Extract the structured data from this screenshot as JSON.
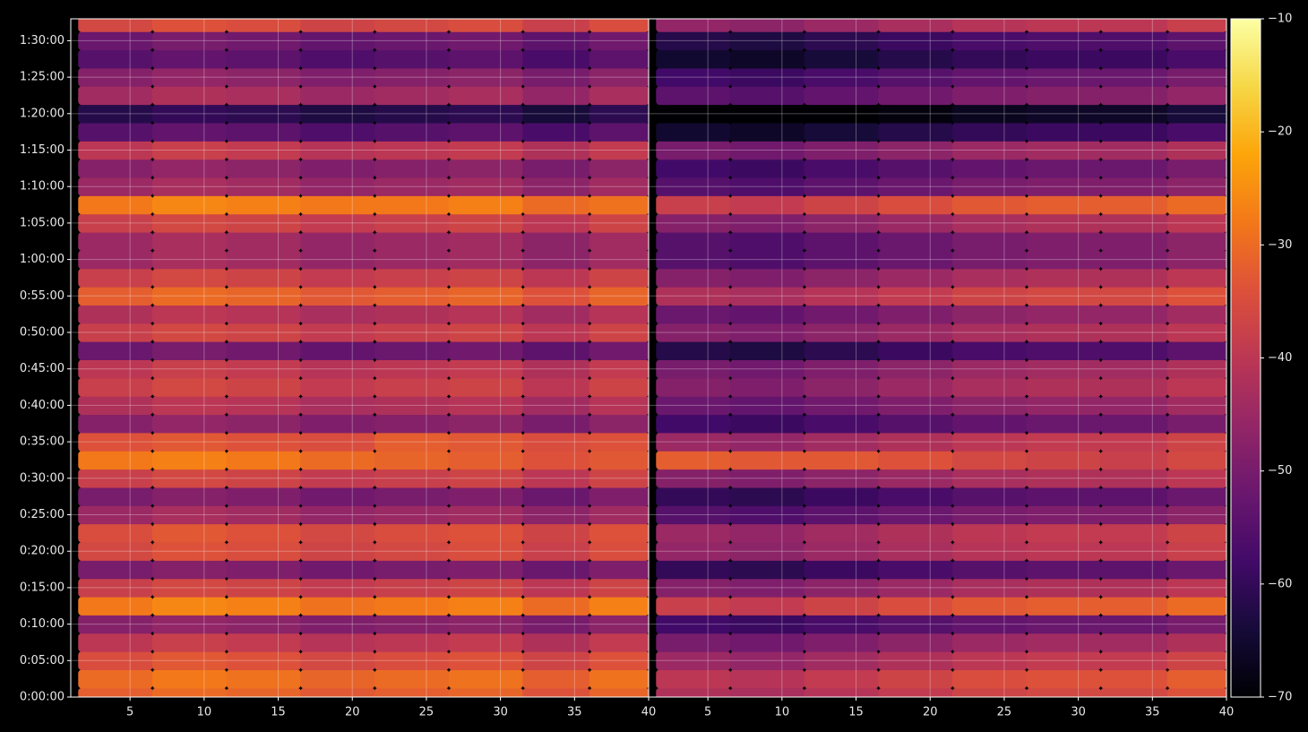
{
  "chart_data": [
    {
      "type": "heatmap",
      "x": [
        4,
        9,
        14,
        19,
        24,
        29,
        34,
        38
      ],
      "y": [
        0,
        150,
        300,
        450,
        600,
        750,
        900,
        1050,
        1200,
        1350,
        1500,
        1650,
        1800,
        1950,
        2100,
        2250,
        2400,
        2550,
        2700,
        2850,
        3000,
        3150,
        3300,
        3450,
        3600,
        3750,
        3900,
        4050,
        4200,
        4350,
        4500,
        4650,
        4800,
        4950,
        5100,
        5250,
        5400,
        5550
      ],
      "values": [
        [
          -32,
          -30,
          -31,
          -33,
          -32,
          -31,
          -34,
          -31
        ],
        [
          -30,
          -28,
          -29,
          -31,
          -30,
          -29,
          -32,
          -29
        ],
        [
          -35,
          -33,
          -34,
          -36,
          -35,
          -34,
          -37,
          -34
        ],
        [
          -40,
          -38,
          -39,
          -41,
          -40,
          -39,
          -42,
          -39
        ],
        [
          -48,
          -46,
          -47,
          -49,
          -48,
          -47,
          -50,
          -47
        ],
        [
          -28,
          -26,
          -27,
          -29,
          -28,
          -27,
          -30,
          -27
        ],
        [
          -38,
          -36,
          -37,
          -39,
          -38,
          -37,
          -40,
          -37
        ],
        [
          -50,
          -48,
          -49,
          -51,
          -50,
          -49,
          -52,
          -49
        ],
        [
          -36,
          -34,
          -35,
          -37,
          -36,
          -35,
          -38,
          -35
        ],
        [
          -35,
          -33,
          -34,
          -36,
          -35,
          -34,
          -37,
          -34
        ],
        [
          -45,
          -43,
          -44,
          -46,
          -45,
          -44,
          -47,
          -44
        ],
        [
          -50,
          -48,
          -49,
          -51,
          -50,
          -49,
          -52,
          -49
        ],
        [
          -38,
          -36,
          -37,
          -39,
          -38,
          -37,
          -40,
          -37
        ],
        [
          -28,
          -27,
          -28,
          -30,
          -31,
          -32,
          -34,
          -33
        ],
        [
          -34,
          -33,
          -34,
          -35,
          -32,
          -33,
          -35,
          -34
        ],
        [
          -48,
          -46,
          -47,
          -49,
          -48,
          -47,
          -50,
          -47
        ],
        [
          -42,
          -40,
          -41,
          -43,
          -42,
          -41,
          -44,
          -41
        ],
        [
          -38,
          -36,
          -37,
          -39,
          -38,
          -37,
          -40,
          -37
        ],
        [
          -40,
          -38,
          -39,
          -41,
          -40,
          -39,
          -42,
          -39
        ],
        [
          -52,
          -50,
          -51,
          -53,
          -52,
          -51,
          -54,
          -51
        ],
        [
          -38,
          -36,
          -37,
          -39,
          -38,
          -37,
          -40,
          -37
        ],
        [
          -42,
          -40,
          -41,
          -43,
          -42,
          -41,
          -44,
          -41
        ],
        [
          -32,
          -30,
          -31,
          -33,
          -32,
          -31,
          -34,
          -31
        ],
        [
          -38,
          -36,
          -37,
          -39,
          -38,
          -37,
          -40,
          -37
        ],
        [
          -45,
          -43,
          -44,
          -46,
          -45,
          -44,
          -47,
          -44
        ],
        [
          -45,
          -43,
          -44,
          -46,
          -45,
          -44,
          -47,
          -44
        ],
        [
          -38,
          -36,
          -37,
          -39,
          -38,
          -37,
          -40,
          -37
        ],
        [
          -28,
          -26,
          -27,
          -28,
          -28,
          -27,
          -30,
          -29
        ],
        [
          -45,
          -43,
          -44,
          -46,
          -45,
          -44,
          -47,
          -44
        ],
        [
          -48,
          -46,
          -47,
          -49,
          -48,
          -47,
          -50,
          -47
        ],
        [
          -40,
          -38,
          -39,
          -41,
          -40,
          -39,
          -42,
          -39
        ],
        [
          -55,
          -53,
          -54,
          -56,
          -55,
          -54,
          -57,
          -54
        ],
        [
          -62,
          -60,
          -61,
          -63,
          -62,
          -61,
          -64,
          -61
        ],
        [
          -44,
          -42,
          -43,
          -45,
          -44,
          -43,
          -46,
          -43
        ],
        [
          -48,
          -46,
          -47,
          -49,
          -48,
          -47,
          -50,
          -47
        ],
        [
          -55,
          -53,
          -54,
          -56,
          -55,
          -54,
          -57,
          -54
        ],
        [
          -52,
          -50,
          -51,
          -53,
          -52,
          -51,
          -54,
          -51
        ],
        [
          -36,
          -34,
          -35,
          -37,
          -36,
          -35,
          -38,
          -35
        ]
      ],
      "xlim": [
        1,
        40
      ],
      "ylim": [
        0,
        5580
      ],
      "xticks": [
        5,
        10,
        15,
        20,
        25,
        30,
        35,
        40
      ],
      "yticks": [
        {
          "value": 0,
          "label": "0:00:00"
        },
        {
          "value": 300,
          "label": "0:05:00"
        },
        {
          "value": 600,
          "label": "0:10:00"
        },
        {
          "value": 900,
          "label": "0:15:00"
        },
        {
          "value": 1200,
          "label": "0:20:00"
        },
        {
          "value": 1500,
          "label": "0:25:00"
        },
        {
          "value": 1800,
          "label": "0:30:00"
        },
        {
          "value": 2100,
          "label": "0:35:00"
        },
        {
          "value": 2400,
          "label": "0:40:00"
        },
        {
          "value": 2700,
          "label": "0:45:00"
        },
        {
          "value": 3000,
          "label": "0:50:00"
        },
        {
          "value": 3300,
          "label": "0:55:00"
        },
        {
          "value": 3600,
          "label": "1:00:00"
        },
        {
          "value": 3900,
          "label": "1:05:00"
        },
        {
          "value": 4200,
          "label": "1:10:00"
        },
        {
          "value": 4500,
          "label": "1:15:00"
        },
        {
          "value": 4800,
          "label": "1:20:00"
        },
        {
          "value": 5100,
          "label": "1:25:00"
        },
        {
          "value": 5400,
          "label": "1:30:00"
        }
      ],
      "grid": true,
      "colormap": "inferno"
    },
    {
      "type": "heatmap",
      "x": [
        4,
        9,
        14,
        19,
        24,
        29,
        34,
        38
      ],
      "y": [
        0,
        150,
        300,
        450,
        600,
        750,
        900,
        1050,
        1200,
        1350,
        1500,
        1650,
        1800,
        1950,
        2100,
        2250,
        2400,
        2550,
        2700,
        2850,
        3000,
        3150,
        3300,
        3450,
        3600,
        3750,
        3900,
        4050,
        4200,
        4350,
        4500,
        4650,
        4800,
        4950,
        5100,
        5250,
        5400,
        5550
      ],
      "values": [
        [
          -42,
          -43,
          -41,
          -39,
          -37,
          -36,
          -36,
          -34
        ],
        [
          -40,
          -41,
          -39,
          -37,
          -35,
          -34,
          -34,
          -32
        ],
        [
          -45,
          -46,
          -44,
          -42,
          -40,
          -39,
          -39,
          -37
        ],
        [
          -50,
          -51,
          -49,
          -47,
          -45,
          -44,
          -44,
          -42
        ],
        [
          -58,
          -59,
          -57,
          -55,
          -53,
          -52,
          -52,
          -50
        ],
        [
          -38,
          -39,
          -37,
          -35,
          -33,
          -32,
          -32,
          -30
        ],
        [
          -48,
          -49,
          -47,
          -45,
          -43,
          -42,
          -42,
          -40
        ],
        [
          -60,
          -61,
          -59,
          -57,
          -55,
          -54,
          -54,
          -52
        ],
        [
          -46,
          -47,
          -45,
          -43,
          -41,
          -40,
          -40,
          -38
        ],
        [
          -45,
          -46,
          -44,
          -42,
          -40,
          -39,
          -39,
          -37
        ],
        [
          -55,
          -56,
          -54,
          -52,
          -50,
          -49,
          -49,
          -47
        ],
        [
          -60,
          -61,
          -59,
          -57,
          -55,
          -54,
          -54,
          -52
        ],
        [
          -48,
          -49,
          -47,
          -45,
          -43,
          -42,
          -42,
          -40
        ],
        [
          -32,
          -33,
          -33,
          -34,
          -36,
          -37,
          -38,
          -36
        ],
        [
          -45,
          -46,
          -44,
          -42,
          -40,
          -39,
          -39,
          -37
        ],
        [
          -58,
          -59,
          -57,
          -55,
          -53,
          -52,
          -52,
          -50
        ],
        [
          -52,
          -53,
          -51,
          -49,
          -47,
          -46,
          -46,
          -44
        ],
        [
          -48,
          -49,
          -47,
          -45,
          -43,
          -42,
          -42,
          -40
        ],
        [
          -50,
          -51,
          -49,
          -47,
          -45,
          -44,
          -44,
          -42
        ],
        [
          -62,
          -63,
          -61,
          -59,
          -57,
          -56,
          -56,
          -54
        ],
        [
          -48,
          -49,
          -47,
          -45,
          -43,
          -42,
          -42,
          -40
        ],
        [
          -52,
          -53,
          -51,
          -49,
          -47,
          -46,
          -46,
          -44
        ],
        [
          -42,
          -43,
          -41,
          -39,
          -37,
          -36,
          -36,
          -34
        ],
        [
          -48,
          -49,
          -47,
          -45,
          -43,
          -42,
          -42,
          -40
        ],
        [
          -55,
          -56,
          -54,
          -52,
          -50,
          -49,
          -49,
          -47
        ],
        [
          -55,
          -56,
          -54,
          -52,
          -50,
          -49,
          -49,
          -47
        ],
        [
          -48,
          -49,
          -47,
          -45,
          -43,
          -42,
          -42,
          -40
        ],
        [
          -38,
          -39,
          -37,
          -35,
          -33,
          -32,
          -32,
          -30
        ],
        [
          -55,
          -56,
          -54,
          -52,
          -50,
          -49,
          -49,
          -47
        ],
        [
          -58,
          -59,
          -57,
          -55,
          -53,
          -52,
          -52,
          -50
        ],
        [
          -50,
          -51,
          -49,
          -47,
          -45,
          -44,
          -44,
          -42
        ],
        [
          -65,
          -66,
          -64,
          -62,
          -60,
          -59,
          -59,
          -57
        ],
        [
          -70,
          -70,
          -70,
          -69,
          -67,
          -66,
          -66,
          -64
        ],
        [
          -54,
          -55,
          -53,
          -51,
          -49,
          -48,
          -48,
          -46
        ],
        [
          -58,
          -59,
          -57,
          -55,
          -53,
          -52,
          -52,
          -50
        ],
        [
          -65,
          -66,
          -64,
          -62,
          -60,
          -59,
          -59,
          -57
        ],
        [
          -62,
          -63,
          -61,
          -59,
          -57,
          -56,
          -56,
          -54
        ],
        [
          -46,
          -47,
          -45,
          -43,
          -41,
          -40,
          -40,
          -38
        ]
      ],
      "xlim": [
        1,
        40
      ],
      "ylim": [
        0,
        5580
      ],
      "xticks": [
        5,
        10,
        15,
        20,
        25,
        30,
        35,
        40
      ],
      "yticks": [
        0,
        300,
        600,
        900,
        1200,
        1500,
        1800,
        2100,
        2400,
        2700,
        3000,
        3300,
        3600,
        3900,
        4200,
        4500,
        4800,
        5100,
        5400
      ],
      "grid": true,
      "colormap": "inferno",
      "colorbar": {
        "lim": [
          -70,
          -10
        ],
        "ticks": [
          {
            "value": -70,
            "label": "−70"
          },
          {
            "value": -60,
            "label": "−60"
          },
          {
            "value": -50,
            "label": "−50"
          },
          {
            "value": -40,
            "label": "−40"
          },
          {
            "value": -30,
            "label": "−30"
          },
          {
            "value": -20,
            "label": "−20"
          },
          {
            "value": -10,
            "label": "−10"
          }
        ]
      }
    }
  ]
}
